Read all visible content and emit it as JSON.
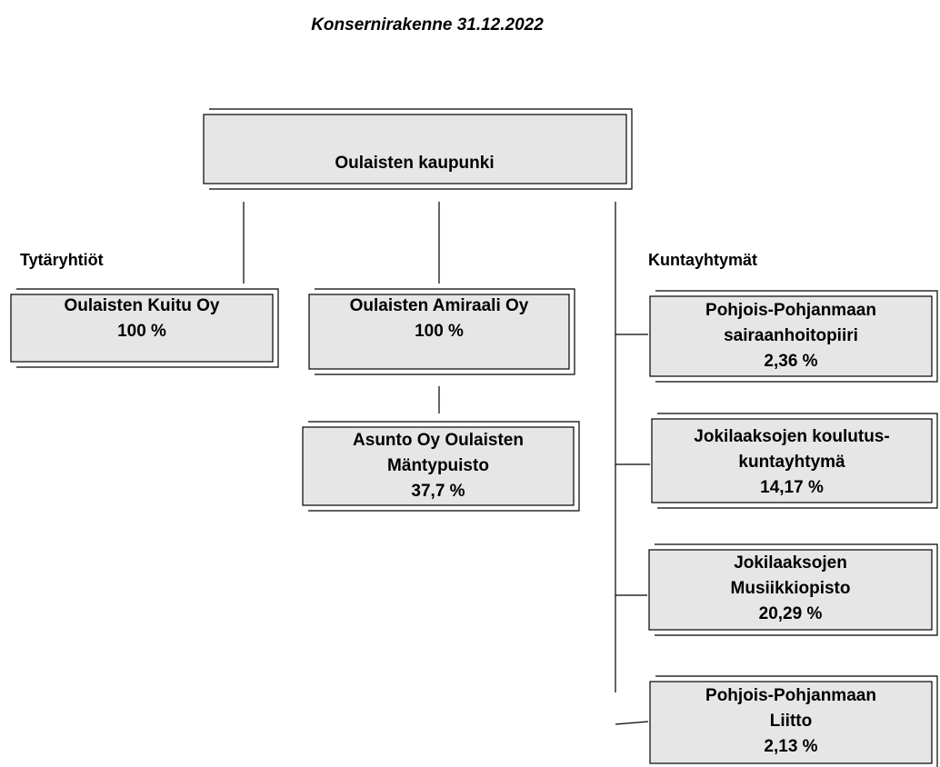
{
  "title": "Konsernirakenne 31.12.2022",
  "root": {
    "label": "Oulaisten kaupunki"
  },
  "sections": {
    "left": "Tytäryhtiöt",
    "right": "Kuntayhtymät"
  },
  "nodes": [
    {
      "lines": [
        "Oulaisten Kuitu Oy",
        "100 %"
      ]
    },
    {
      "lines": [
        "Oulaisten Amiraali Oy",
        "100 %"
      ]
    },
    {
      "lines": [
        "Asunto Oy Oulaisten",
        "Mäntypuisto",
        "37,7 %"
      ]
    },
    {
      "lines": [
        "Pohjois-Pohjanmaan",
        "sairaanhoitopiiri",
        "2,36 %"
      ]
    },
    {
      "lines": [
        "Jokilaaksojen koulutus-",
        "kuntayhtymä",
        "14,17 %"
      ]
    },
    {
      "lines": [
        "Jokilaaksojen",
        "Musiikkiopisto",
        "20,29 %"
      ]
    },
    {
      "lines": [
        "Pohjois-Pohjanmaan",
        "Liitto",
        "2,13 %"
      ]
    }
  ]
}
